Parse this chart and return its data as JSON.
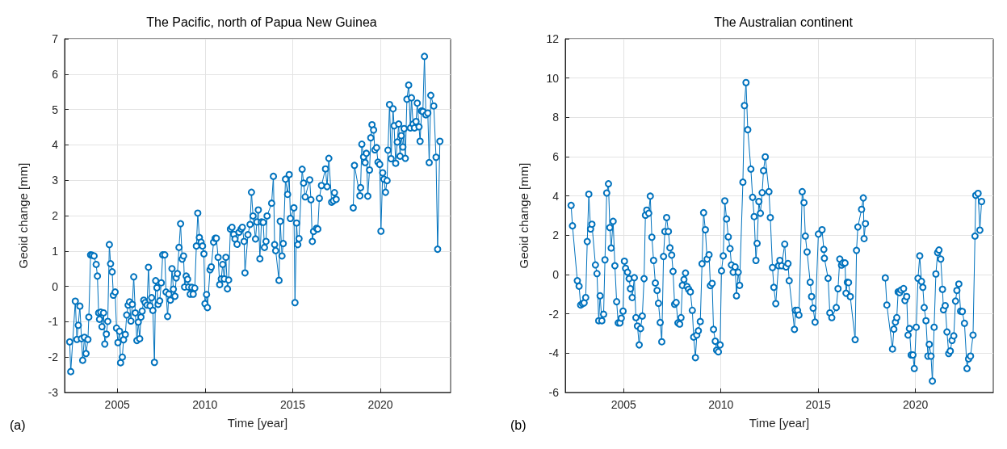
{
  "chart_data": [
    {
      "type": "line",
      "title": "The Pacific, north of Papua New Guinea",
      "xlabel": "Time [year]",
      "ylabel": "Geoid change [mm]",
      "annotations": [
        "(a)"
      ],
      "xlim": [
        2002,
        2024
      ],
      "xticks": [
        2005,
        2010,
        2015,
        2020
      ],
      "ylim": [
        -3,
        7
      ],
      "yticks": [
        -3,
        -2,
        -1,
        0,
        1,
        2,
        3,
        4,
        5,
        6,
        7
      ],
      "grid": true,
      "marker": "circle",
      "line_style": "solid",
      "series": [
        {
          "color": "#0072bd",
          "x": [
            2002.29,
            2002.35,
            2002.61,
            2002.7,
            2002.78,
            2002.87,
            2002.96,
            2003.03,
            2003.13,
            2003.22,
            2003.33,
            2003.38,
            2003.48,
            2003.57,
            2003.68,
            2003.8,
            2003.87,
            2003.94,
            2003.99,
            2004.06,
            2004.13,
            2004.22,
            2004.29,
            2004.38,
            2004.46,
            2004.55,
            2004.62,
            2004.71,
            2004.78,
            2004.88,
            2004.96,
            2005.04,
            2005.13,
            2005.19,
            2005.29,
            2005.36,
            2005.46,
            2005.54,
            2005.62,
            2005.7,
            2005.78,
            2005.86,
            2005.94,
            2006.03,
            2006.12,
            2006.2,
            2006.28,
            2006.35,
            2006.42,
            2006.51,
            2006.59,
            2006.7,
            2006.78,
            2006.87,
            2006.96,
            2007.03,
            2007.12,
            2007.19,
            2007.26,
            2007.33,
            2007.42,
            2007.51,
            2007.59,
            2007.71,
            2007.78,
            2007.87,
            2007.94,
            2008.03,
            2008.12,
            2008.2,
            2008.29,
            2008.36,
            2008.43,
            2008.52,
            2008.61,
            2008.7,
            2008.78,
            2008.84,
            2008.93,
            2009.01,
            2009.07,
            2009.16,
            2009.25,
            2009.33,
            2009.42,
            2009.51,
            2009.59,
            2009.68,
            2009.78,
            2009.86,
            2009.94,
            2010.0,
            2010.09,
            2010.14,
            2010.29,
            2010.36,
            2010.49,
            2010.58,
            2010.65,
            2010.75,
            2010.84,
            2010.93,
            2011.01,
            2011.1,
            2011.19,
            2011.28,
            2011.35,
            2011.45,
            2011.54,
            2011.64,
            2011.71,
            2011.83,
            2011.94,
            2012.06,
            2012.13,
            2012.23,
            2012.28,
            2012.45,
            2012.57,
            2012.65,
            2012.74,
            2012.88,
            2012.96,
            2013.04,
            2013.13,
            2013.22,
            2013.32,
            2013.39,
            2013.48,
            2013.54,
            2013.8,
            2013.9,
            2013.97,
            2014.03,
            2014.22,
            2014.29,
            2014.39,
            2014.46,
            2014.59,
            2014.71,
            2014.8,
            2014.87,
            2015.07,
            2015.13,
            2015.22,
            2015.29,
            2015.36,
            2015.54,
            2015.62,
            2015.71,
            2015.97,
            2016.04,
            2016.12,
            2016.19,
            2016.36,
            2016.43,
            2016.52,
            2016.64,
            2016.87,
            2016.96,
            2017.06,
            2017.22,
            2017.32,
            2017.38,
            2017.48,
            2017.95,
            2018.45,
            2018.52,
            2018.83,
            2018.87,
            2018.94,
            2019.04,
            2019.13,
            2019.2,
            2019.28,
            2019.38,
            2019.45,
            2019.52,
            2019.61,
            2019.68,
            2019.78,
            2019.86,
            2019.96,
            2020.03,
            2020.13,
            2020.2,
            2020.29,
            2020.38,
            2020.43,
            2020.52,
            2020.61,
            2020.72,
            2020.78,
            2020.87,
            2020.96,
            2021.04,
            2021.12,
            2021.19,
            2021.28,
            2021.35,
            2021.42,
            2021.51,
            2021.61,
            2021.71,
            2021.77,
            2021.86,
            2021.94,
            2022.03,
            2022.1,
            2022.2,
            2022.26,
            2022.35,
            2022.42,
            2022.51,
            2022.59,
            2022.7,
            2022.78,
            2022.87,
            2023.04,
            2023.17,
            2023.26,
            2023.39
          ],
          "values": [
            -1.57,
            -2.41,
            -0.42,
            -1.5,
            -1.1,
            -0.56,
            -1.48,
            -2.09,
            -1.44,
            -1.9,
            -1.5,
            -0.87,
            0.89,
            0.88,
            0.86,
            0.62,
            0.29,
            -0.75,
            -0.93,
            -0.73,
            -1.14,
            -0.75,
            -1.63,
            -1.35,
            -0.99,
            1.18,
            0.64,
            0.41,
            -0.25,
            -0.16,
            -1.18,
            -1.59,
            -1.27,
            -2.16,
            -2.0,
            -1.51,
            -1.36,
            -0.81,
            -0.53,
            -0.44,
            -0.98,
            -0.51,
            0.27,
            -0.75,
            -1.53,
            -1.01,
            -1.48,
            -0.87,
            -0.7,
            -0.39,
            -0.46,
            -0.53,
            0.54,
            -0.55,
            -0.32,
            -0.68,
            -2.15,
            0.16,
            -0.04,
            -0.51,
            -0.41,
            0.1,
            0.89,
            0.89,
            -0.16,
            -0.85,
            -0.22,
            -0.39,
            0.5,
            -0.08,
            -0.28,
            0.24,
            0.36,
            1.1,
            1.77,
            0.77,
            0.86,
            -0.02,
            0.29,
            0.2,
            -0.02,
            -0.22,
            -0.03,
            -0.22,
            -0.05,
            1.14,
            2.07,
            1.38,
            1.25,
            1.14,
            0.92,
            -0.49,
            -0.23,
            -0.6,
            0.47,
            0.55,
            1.25,
            1.36,
            1.36,
            0.82,
            0.05,
            0.21,
            0.62,
            0.21,
            0.82,
            -0.07,
            0.18,
            1.62,
            1.67,
            1.47,
            1.34,
            1.19,
            1.53,
            1.62,
            1.67,
            1.27,
            0.38,
            1.46,
            1.75,
            2.66,
            1.99,
            1.34,
            1.82,
            2.16,
            0.78,
            1.82,
            1.81,
            1.1,
            1.27,
            1.99,
            2.35,
            3.11,
            1.18,
            1.01,
            0.17,
            1.84,
            0.86,
            1.21,
            3.03,
            2.6,
            3.16,
            1.92,
            2.22,
            -0.46,
            1.79,
            1.18,
            1.35,
            3.31,
            2.92,
            2.53,
            3.01,
            2.45,
            1.27,
            1.55,
            1.64,
            1.62,
            2.49,
            2.85,
            3.32,
            2.82,
            3.62,
            2.38,
            2.42,
            2.65,
            2.46,
            null,
            2.22,
            3.42,
            2.56,
            2.79,
            4.02,
            3.66,
            3.5,
            3.76,
            2.55,
            3.29,
            4.2,
            4.57,
            4.42,
            3.86,
            3.92,
            3.51,
            3.45,
            1.56,
            3.21,
            3.03,
            2.66,
            2.99,
            3.85,
            5.14,
            3.61,
            5.02,
            4.54,
            3.48,
            4.08,
            4.59,
            3.68,
            4.26,
            3.94,
            4.46,
            3.62,
            5.29,
            5.69,
            4.48,
            5.33,
            4.59,
            4.48,
            4.66,
            5.18,
            4.51,
            4.1,
            4.96,
            4.94,
            6.5,
            4.85,
            4.9,
            3.5,
            5.4,
            5.1,
            3.65,
            1.05,
            4.1
          ]
        }
      ]
    },
    {
      "type": "line",
      "title": "The Australian continent",
      "xlabel": "Time [year]",
      "ylabel": "Geoid change [mm]",
      "annotations": [
        "(b)"
      ],
      "xlim": [
        2002,
        2024
      ],
      "xticks": [
        2005,
        2010,
        2015,
        2020
      ],
      "ylim": [
        -6,
        12
      ],
      "yticks": [
        -6,
        -4,
        -2,
        0,
        2,
        4,
        6,
        8,
        10,
        12
      ],
      "grid": true,
      "marker": "circle",
      "line_style": "solid",
      "series": [
        {
          "color": "#0072bd",
          "x": [
            2002.3,
            2002.37,
            2002.62,
            2002.71,
            2002.79,
            2002.88,
            2002.97,
            2003.05,
            2003.13,
            2003.21,
            2003.3,
            2003.37,
            2003.55,
            2003.63,
            2003.72,
            2003.79,
            2003.88,
            2003.97,
            2004.04,
            2004.13,
            2004.22,
            2004.29,
            2004.36,
            2004.46,
            2004.55,
            2004.64,
            2004.72,
            2004.81,
            2004.88,
            2004.97,
            2005.04,
            2005.1,
            2005.2,
            2005.28,
            2005.35,
            2005.44,
            2005.55,
            2005.63,
            2005.71,
            2005.8,
            2005.87,
            2005.96,
            2006.05,
            2006.12,
            2006.19,
            2006.29,
            2006.37,
            2006.45,
            2006.54,
            2006.63,
            2006.72,
            2006.79,
            2006.88,
            2006.96,
            2007.05,
            2007.12,
            2007.21,
            2007.3,
            2007.38,
            2007.47,
            2007.54,
            2007.62,
            2007.7,
            2007.79,
            2007.88,
            2007.95,
            2008.02,
            2008.1,
            2008.18,
            2008.26,
            2008.34,
            2008.43,
            2008.53,
            2008.6,
            2008.69,
            2008.76,
            2008.84,
            2008.94,
            2009.03,
            2009.11,
            2009.2,
            2009.29,
            2009.39,
            2009.46,
            2009.55,
            2009.62,
            2009.71,
            2009.78,
            2009.87,
            2009.96,
            2010.03,
            2010.12,
            2010.2,
            2010.29,
            2010.38,
            2010.47,
            2010.54,
            2010.63,
            2010.73,
            2010.8,
            2010.89,
            2010.96,
            2011.13,
            2011.21,
            2011.29,
            2011.38,
            2011.54,
            2011.63,
            2011.71,
            2011.8,
            2011.86,
            2011.95,
            2012.03,
            2012.12,
            2012.19,
            2012.28,
            2012.47,
            2012.54,
            2012.65,
            2012.72,
            2012.82,
            2012.96,
            2013.03,
            2013.12,
            2013.28,
            2013.35,
            2013.45,
            2013.51,
            2013.78,
            2013.83,
            2013.94,
            2014.01,
            2014.18,
            2014.27,
            2014.34,
            2014.43,
            2014.59,
            2014.66,
            2014.74,
            2014.84,
            2015.01,
            2015.09,
            2015.2,
            2015.29,
            2015.32,
            2015.51,
            2015.6,
            2015.7,
            2015.93,
            2016.02,
            2016.11,
            2016.2,
            2016.27,
            2016.38,
            2016.43,
            2016.5,
            2016.56,
            2016.65,
            2016.9,
            2016.97,
            2017.04,
            2017.23,
            2017.32,
            2017.36,
            2017.43,
            2017.95,
            2018.45,
            2018.53,
            2018.82,
            2018.89,
            2018.97,
            2019.04,
            2019.11,
            2019.18,
            2019.26,
            2019.39,
            2019.46,
            2019.55,
            2019.62,
            2019.69,
            2019.78,
            2019.87,
            2019.94,
            2020.04,
            2020.13,
            2020.22,
            2020.31,
            2020.38,
            2020.45,
            2020.54,
            2020.64,
            2020.71,
            2020.8,
            2020.87,
            2020.96,
            2021.05,
            2021.14,
            2021.21,
            2021.3,
            2021.39,
            2021.44,
            2021.53,
            2021.62,
            2021.71,
            2021.79,
            2021.88,
            2021.97,
            2022.06,
            2022.13,
            2022.23,
            2022.32,
            2022.41,
            2022.52,
            2022.65,
            2022.73,
            2022.83,
            2022.96,
            2023.06,
            2023.1,
            2023.22,
            2023.31,
            2023.4
          ],
          "values": [
            3.52,
            2.48,
            -0.31,
            -0.59,
            -1.55,
            -1.48,
            -1.44,
            -1.17,
            1.68,
            4.09,
            2.32,
            2.56,
            0.49,
            0.05,
            -2.35,
            -1.08,
            -2.35,
            -2.02,
            0.75,
            4.15,
            4.62,
            2.39,
            1.35,
            2.71,
            0.45,
            -1.38,
            -2.46,
            -2.46,
            -2.22,
            -1.86,
            0.68,
            0.32,
            0.12,
            -0.21,
            -0.72,
            -1.17,
            -0.16,
            -2.19,
            -2.62,
            -3.58,
            -2.75,
            -2.11,
            -0.21,
            3.02,
            3.28,
            3.12,
            3.99,
            1.9,
            0.72,
            -0.43,
            -0.81,
            -1.46,
            -2.44,
            -3.42,
            0.92,
            2.19,
            2.9,
            2.19,
            1.36,
            0.99,
            0.16,
            -1.51,
            -1.42,
            -2.46,
            -2.52,
            -2.19,
            -0.55,
            -0.25,
            0.08,
            -0.61,
            -0.75,
            -0.88,
            -1.82,
            -3.18,
            -4.23,
            -3.08,
            -2.86,
            -2.39,
            0.55,
            3.15,
            2.28,
            0.79,
            1.01,
            -0.56,
            -0.45,
            -2.79,
            -3.39,
            -3.85,
            -3.93,
            -3.58,
            0.19,
            0.95,
            3.75,
            2.83,
            1.92,
            1.32,
            0.49,
            0.12,
            0.39,
            -1.08,
            0.12,
            -0.55,
            4.7,
            8.6,
            9.77,
            7.37,
            5.37,
            3.93,
            2.95,
            0.72,
            1.59,
            3.72,
            3.12,
            4.17,
            5.29,
            5.99,
            4.22,
            2.9,
            0.36,
            -0.65,
            -1.48,
            0.45,
            0.72,
            0.45,
            1.55,
            0.39,
            0.56,
            -0.31,
            -2.79,
            -1.82,
            -1.82,
            -2.06,
            4.22,
            3.66,
            1.96,
            1.15,
            -0.39,
            -1.12,
            -1.71,
            -2.42,
            2.06,
            null,
            2.28,
            1.28,
            0.83,
            -0.19,
            -1.95,
            -2.19,
            -1.68,
            -0.72,
            0.79,
            0.48,
            0.59,
            0.59,
            -0.95,
            -0.39,
            -0.41,
            -1.12,
            -3.31,
            1.23,
            2.42,
            3.32,
            3.9,
            1.83,
            2.59,
            null,
            -0.17,
            -1.55,
            -3.79,
            -2.78,
            -2.42,
            -2.19,
            -0.88,
            -0.92,
            -0.79,
            -0.71,
            -1.32,
            -1.12,
            -3.08,
            -2.75,
            -4.09,
            -4.09,
            -4.78,
            -2.68,
            -0.19,
            0.95,
            -0.35,
            -0.65,
            -1.68,
            -2.35,
            -4.15,
            -3.55,
            -4.15,
            -5.42,
            -2.68,
            0.03,
            1.12,
            1.25,
            0.79,
            -0.75,
            -1.79,
            -1.58,
            -2.92,
            -4.02,
            -3.89,
            -3.35,
            -3.12,
            -1.35,
            -0.81,
            -0.48,
            -1.86,
            -1.88,
            -2.48,
            -4.78,
            -4.29,
            -4.15,
            -3.08,
            1.96,
            4.03,
            4.13,
            2.26,
            3.72
          ]
        }
      ]
    }
  ]
}
